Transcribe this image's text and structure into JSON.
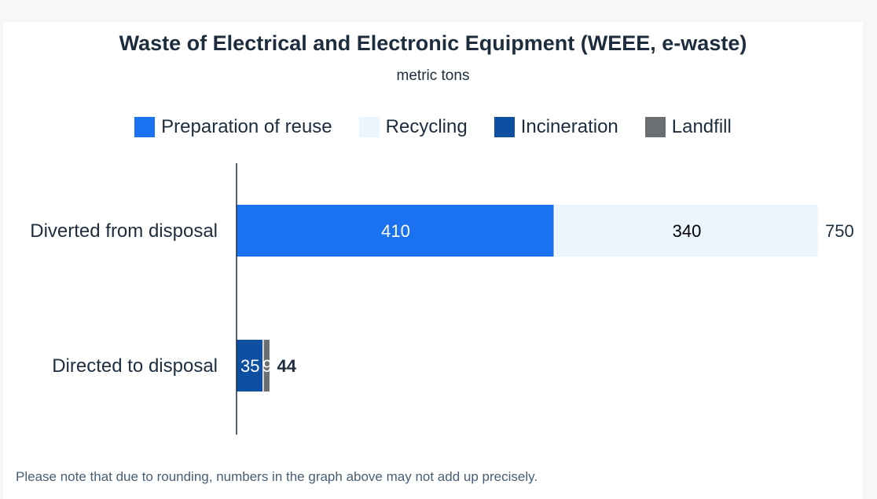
{
  "chart_data": {
    "type": "bar",
    "orientation": "horizontal",
    "stacked": true,
    "title": "Waste of Electrical and Electronic Equipment (WEEE, e-waste)",
    "subtitle": "metric tons",
    "categories": [
      "Diverted from disposal",
      "Directed to disposal"
    ],
    "series": [
      {
        "name": "Preparation of reuse",
        "values": [
          410,
          0
        ],
        "labels": [
          "410",
          ""
        ],
        "color": "#1b72f0",
        "label_color": "#ffffff"
      },
      {
        "name": "Recycling",
        "values": [
          340,
          0
        ],
        "labels": [
          "340",
          ""
        ],
        "color": "#eaf5fe",
        "label_color": "#000000"
      },
      {
        "name": "Incineration",
        "values": [
          0,
          35
        ],
        "labels": [
          "",
          "35"
        ],
        "color": "#0d4fa0",
        "label_color": "#ffffff"
      },
      {
        "name": "Landfill",
        "values": [
          0,
          9
        ],
        "labels": [
          "",
          "9"
        ],
        "color": "#6b6f71",
        "label_color": "#ffffff"
      }
    ],
    "totals": [
      "750",
      "44"
    ],
    "xlim": [
      0,
      750
    ],
    "legend": "top",
    "grid": false
  },
  "note": "Please note that due to rounding, numbers in the graph above may not add up precisely."
}
